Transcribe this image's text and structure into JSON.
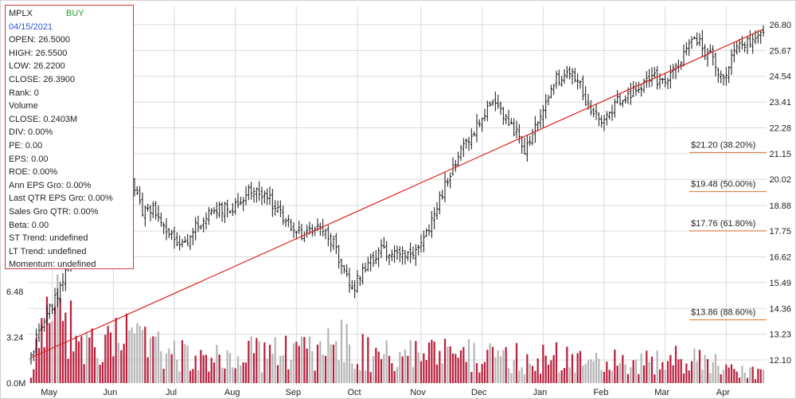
{
  "info": {
    "symbol": "MPLX",
    "signal": "BUY",
    "date": "04/15/2021",
    "rows": [
      "OPEN: 26.5000",
      "HIGH: 26.5500",
      "LOW: 26.2200",
      "CLOSE: 26.3900",
      "Rank: 0",
      "Volume",
      "CLOSE: 0.2403M",
      "DIV: 0.00%",
      "PE: 0.00",
      "EPS: 0.00",
      "ROE: 0.00%",
      "Ann EPS Gro: 0.00%",
      "Last QTR EPS Gro: 0.00%",
      "Sales Gro QTR: 0.00%",
      "Beta: 0.00",
      "ST Trend: undefined",
      "LT Trend: undefined",
      "Momentum: undefined"
    ]
  },
  "chart_data": {
    "type": "candlestick",
    "price_axis": {
      "ticks": [
        "26.80",
        "25.67",
        "24.54",
        "23.41",
        "22.28",
        "21.15",
        "20.02",
        "18.88",
        "17.75",
        "16.62",
        "15.49",
        "14.36",
        "13.23",
        "12.10"
      ],
      "range": [
        12.1,
        26.8
      ]
    },
    "volume_axis": {
      "ticks": [
        "6.48",
        "3.24",
        "0.0M"
      ],
      "range": [
        0,
        6.48
      ]
    },
    "x_axis": {
      "labels": [
        "May",
        "Jun",
        "Jul",
        "Aug",
        "Sep",
        "Oct",
        "Nov",
        "Dec",
        "Jan",
        "Feb",
        "Mar",
        "Apr"
      ]
    },
    "fibonacci_levels": [
      {
        "label": "$21.20 (38.20%)",
        "value": 21.2
      },
      {
        "label": "$19.48 (50.00%)",
        "value": 19.48
      },
      {
        "label": "$17.76 (61.80%)",
        "value": 17.76
      },
      {
        "label": "$13.86 (88.60%)",
        "value": 13.86
      }
    ],
    "trendline": {
      "from": 12.2,
      "to": 26.6
    },
    "price_keypoints": [
      [
        0,
        12.4
      ],
      [
        12,
        15.6
      ],
      [
        20,
        18.6
      ],
      [
        28,
        19.8
      ],
      [
        36,
        21.5
      ],
      [
        38,
        20.2
      ],
      [
        42,
        18.5
      ],
      [
        46,
        18.9
      ],
      [
        52,
        17.6
      ],
      [
        58,
        17.2
      ],
      [
        64,
        18.2
      ],
      [
        70,
        18.7
      ],
      [
        76,
        18.8
      ],
      [
        80,
        19.2
      ],
      [
        84,
        19.7
      ],
      [
        88,
        19.4
      ],
      [
        96,
        18.1
      ],
      [
        102,
        17.7
      ],
      [
        108,
        17.9
      ],
      [
        114,
        17.3
      ],
      [
        118,
        15.8
      ],
      [
        122,
        15.4
      ],
      [
        126,
        16.3
      ],
      [
        132,
        16.9
      ],
      [
        138,
        16.8
      ],
      [
        144,
        16.5
      ],
      [
        150,
        17.9
      ],
      [
        156,
        19.8
      ],
      [
        162,
        21.3
      ],
      [
        168,
        22.4
      ],
      [
        174,
        23.3
      ],
      [
        180,
        22.5
      ],
      [
        186,
        21.4
      ],
      [
        192,
        22.7
      ],
      [
        198,
        24.4
      ],
      [
        204,
        24.9
      ],
      [
        210,
        23.2
      ],
      [
        216,
        22.6
      ],
      [
        222,
        23.6
      ],
      [
        228,
        23.9
      ],
      [
        234,
        24.5
      ],
      [
        240,
        24.2
      ],
      [
        246,
        25.6
      ],
      [
        250,
        26.3
      ],
      [
        256,
        25.4
      ],
      [
        260,
        24.4
      ],
      [
        266,
        25.7
      ],
      [
        272,
        26.3
      ],
      [
        276,
        26.3
      ]
    ],
    "volume_keypoints": [
      [
        0,
        0.9
      ],
      [
        6,
        4.0
      ],
      [
        12,
        5.0
      ],
      [
        18,
        2.2
      ],
      [
        26,
        2.6
      ],
      [
        36,
        3.0
      ],
      [
        44,
        2.6
      ],
      [
        52,
        2.0
      ],
      [
        60,
        1.8
      ],
      [
        70,
        2.2
      ],
      [
        80,
        2.0
      ],
      [
        90,
        2.1
      ],
      [
        100,
        2.0
      ],
      [
        110,
        2.3
      ],
      [
        118,
        2.8
      ],
      [
        124,
        2.2
      ],
      [
        134,
        1.9
      ],
      [
        150,
        1.9
      ],
      [
        166,
        2.0
      ],
      [
        180,
        1.8
      ],
      [
        198,
        1.8
      ],
      [
        210,
        1.5
      ],
      [
        220,
        1.5
      ],
      [
        232,
        1.6
      ],
      [
        242,
        1.8
      ],
      [
        250,
        1.6
      ],
      [
        262,
        1.1
      ],
      [
        276,
        0.6
      ]
    ],
    "bars": 277
  },
  "colors": {
    "up_volume": "#b81d3a",
    "down_volume": "#b4b4b4",
    "candle": "#111111",
    "trendline": "#e02020",
    "fib": "#e0702a",
    "grid": "#dadada",
    "panel_border": "#cc3b3b"
  }
}
